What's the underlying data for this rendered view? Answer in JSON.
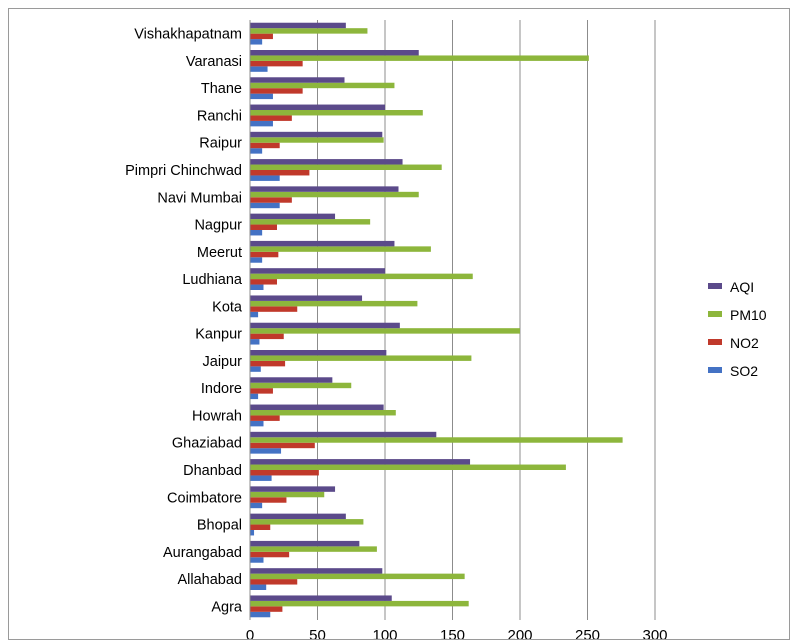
{
  "chart_data": {
    "type": "bar",
    "orientation": "horizontal",
    "categories": [
      "Agra",
      "Allahabad",
      "Aurangabad",
      "Bhopal",
      "Coimbatore",
      "Dhanbad",
      "Ghaziabad",
      "Howrah",
      "Indore",
      "Jaipur",
      "Kanpur",
      "Kota",
      "Ludhiana",
      "Meerut",
      "Nagpur",
      "Navi Mumbai",
      "Pimpri Chinchwad",
      "Raipur",
      "Ranchi",
      "Thane",
      "Varanasi",
      "Vishakhapatnam"
    ],
    "tick_labels": [
      "Agra",
      "Allahabad",
      "Aurangabad",
      "Bhopal",
      "Coimbatore",
      "Dhanbad",
      "Ghaziabad",
      "Howrah",
      "Indore",
      "Jaipur",
      "Kanpur",
      "Kota",
      "Ludhiana",
      "Meerut",
      "Nagpur",
      "Navi Mumbai",
      "Pimpri Chinchwad",
      "Raipur",
      "Ranchi",
      "Thane",
      "Varanasi",
      "Vishakhapatnam"
    ],
    "series": [
      {
        "name": "SO2",
        "color": "#4472c4",
        "values": [
          15,
          12,
          10,
          3,
          9,
          16,
          23,
          10,
          6,
          8,
          7,
          6,
          10,
          9,
          9,
          22,
          22,
          9,
          17,
          17,
          13,
          9
        ]
      },
      {
        "name": "NO2",
        "color": "#c0392b",
        "values": [
          24,
          35,
          29,
          15,
          27,
          51,
          48,
          22,
          17,
          26,
          25,
          35,
          20,
          21,
          20,
          31,
          44,
          22,
          31,
          39,
          39,
          17
        ]
      },
      {
        "name": "PM10",
        "color": "#8db63c",
        "values": [
          162,
          159,
          94,
          84,
          55,
          234,
          276,
          108,
          75,
          164,
          200,
          124,
          165,
          134,
          89,
          125,
          142,
          99,
          128,
          107,
          251,
          87
        ]
      },
      {
        "name": "AQI",
        "color": "#5b4a8a",
        "values": [
          105,
          98,
          81,
          71,
          63,
          163,
          138,
          99,
          61,
          101,
          111,
          83,
          100,
          107,
          63,
          110,
          113,
          98,
          100,
          70,
          125,
          71
        ]
      }
    ],
    "legend_order": [
      "AQI",
      "PM10",
      "NO2",
      "SO2"
    ],
    "legend_position": "right",
    "xlim": [
      0,
      300
    ],
    "x_ticks": [
      0,
      50,
      100,
      150,
      200,
      250,
      300
    ],
    "grid": "vertical",
    "title": "",
    "xlabel": "",
    "ylabel": ""
  }
}
